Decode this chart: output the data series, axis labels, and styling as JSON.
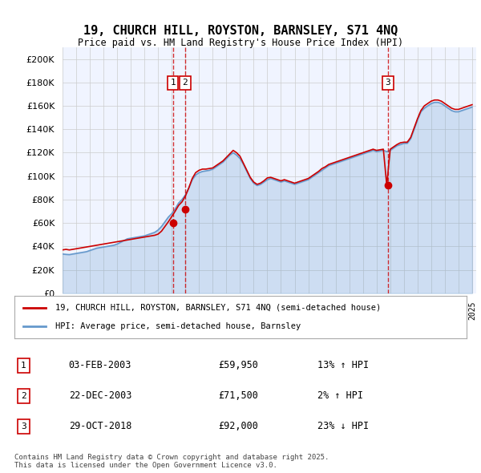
{
  "title": "19, CHURCH HILL, ROYSTON, BARNSLEY, S71 4NQ",
  "subtitle": "Price paid vs. HM Land Registry's House Price Index (HPI)",
  "ylabel_ticks": [
    "£0",
    "£20K",
    "£40K",
    "£60K",
    "£80K",
    "£100K",
    "£120K",
    "£140K",
    "£160K",
    "£180K",
    "£200K"
  ],
  "ytick_values": [
    0,
    20000,
    40000,
    60000,
    80000,
    100000,
    120000,
    140000,
    160000,
    180000,
    200000
  ],
  "ylim": [
    0,
    210000
  ],
  "background_color": "#f0f4ff",
  "plot_bg_color": "#f0f4ff",
  "legend_entry1": "19, CHURCH HILL, ROYSTON, BARNSLEY, S71 4NQ (semi-detached house)",
  "legend_entry2": "HPI: Average price, semi-detached house, Barnsley",
  "transactions": [
    {
      "label": "1",
      "date": "03-FEB-2003",
      "price": 59950,
      "pct": "13%",
      "dir": "↑"
    },
    {
      "label": "2",
      "date": "22-DEC-2003",
      "price": 71500,
      "pct": "2%",
      "dir": "↑"
    },
    {
      "label": "3",
      "date": "29-OCT-2018",
      "price": 92000,
      "pct": "23%",
      "dir": "↓"
    }
  ],
  "transaction_xvals": [
    2003.09,
    2003.98,
    2018.83
  ],
  "footer": "Contains HM Land Registry data © Crown copyright and database right 2025.\nThis data is licensed under the Open Government Licence v3.0.",
  "hpi_color": "#6699cc",
  "price_color": "#cc0000",
  "vline_color": "#cc0000",
  "grid_color": "#cccccc",
  "hpi_data": {
    "x": [
      1995.0,
      1995.25,
      1995.5,
      1995.75,
      1996.0,
      1996.25,
      1996.5,
      1996.75,
      1997.0,
      1997.25,
      1997.5,
      1997.75,
      1998.0,
      1998.25,
      1998.5,
      1998.75,
      1999.0,
      1999.25,
      1999.5,
      1999.75,
      2000.0,
      2000.25,
      2000.5,
      2000.75,
      2001.0,
      2001.25,
      2001.5,
      2001.75,
      2002.0,
      2002.25,
      2002.5,
      2002.75,
      2003.0,
      2003.25,
      2003.5,
      2003.75,
      2004.0,
      2004.25,
      2004.5,
      2004.75,
      2005.0,
      2005.25,
      2005.5,
      2005.75,
      2006.0,
      2006.25,
      2006.5,
      2006.75,
      2007.0,
      2007.25,
      2007.5,
      2007.75,
      2008.0,
      2008.25,
      2008.5,
      2008.75,
      2009.0,
      2009.25,
      2009.5,
      2009.75,
      2010.0,
      2010.25,
      2010.5,
      2010.75,
      2011.0,
      2011.25,
      2011.5,
      2011.75,
      2012.0,
      2012.25,
      2012.5,
      2012.75,
      2013.0,
      2013.25,
      2013.5,
      2013.75,
      2014.0,
      2014.25,
      2014.5,
      2014.75,
      2015.0,
      2015.25,
      2015.5,
      2015.75,
      2016.0,
      2016.25,
      2016.5,
      2016.75,
      2017.0,
      2017.25,
      2017.5,
      2017.75,
      2018.0,
      2018.25,
      2018.5,
      2018.75,
      2019.0,
      2019.25,
      2019.5,
      2019.75,
      2020.0,
      2020.25,
      2020.5,
      2020.75,
      2021.0,
      2021.25,
      2021.5,
      2021.75,
      2022.0,
      2022.25,
      2022.5,
      2022.75,
      2023.0,
      2023.25,
      2023.5,
      2023.75,
      2024.0,
      2024.25,
      2024.5,
      2024.75,
      2025.0
    ],
    "y": [
      33500,
      33200,
      33000,
      33500,
      34000,
      34500,
      35000,
      35500,
      36500,
      37500,
      38500,
      39000,
      39500,
      40000,
      40500,
      41000,
      42000,
      43500,
      45000,
      46500,
      47000,
      47500,
      48000,
      48500,
      49000,
      50000,
      51000,
      52000,
      54000,
      57000,
      61000,
      65000,
      68000,
      72000,
      77000,
      80000,
      84000,
      90000,
      97000,
      101000,
      103000,
      104000,
      104500,
      105000,
      106000,
      108000,
      110000,
      112000,
      115000,
      118000,
      120000,
      118000,
      115000,
      110000,
      104000,
      98000,
      94000,
      92000,
      93000,
      95000,
      97000,
      98000,
      97000,
      96000,
      95000,
      96000,
      95000,
      94000,
      93000,
      94000,
      95000,
      96000,
      97000,
      99000,
      101000,
      103000,
      105000,
      107000,
      109000,
      110000,
      111000,
      112000,
      113000,
      114000,
      115000,
      116000,
      117000,
      118000,
      119000,
      120000,
      121000,
      122000,
      121000,
      121500,
      122000,
      121000,
      122000,
      124000,
      126000,
      127000,
      128000,
      128000,
      132000,
      140000,
      148000,
      155000,
      158000,
      160000,
      162000,
      163000,
      163000,
      162000,
      160000,
      158000,
      156000,
      155000,
      155000,
      156000,
      157000,
      158000,
      159000
    ]
  },
  "price_data": {
    "x": [
      1995.0,
      1995.25,
      1995.5,
      1995.75,
      1996.0,
      1996.25,
      1996.5,
      1996.75,
      1997.0,
      1997.25,
      1997.5,
      1997.75,
      1998.0,
      1998.25,
      1998.5,
      1998.75,
      1999.0,
      1999.25,
      1999.5,
      1999.75,
      2000.0,
      2000.25,
      2000.5,
      2000.75,
      2001.0,
      2001.25,
      2001.5,
      2001.75,
      2002.0,
      2002.25,
      2002.5,
      2002.75,
      2003.0,
      2003.25,
      2003.5,
      2003.75,
      2004.0,
      2004.25,
      2004.5,
      2004.75,
      2005.0,
      2005.25,
      2005.5,
      2005.75,
      2006.0,
      2006.25,
      2006.5,
      2006.75,
      2007.0,
      2007.25,
      2007.5,
      2007.75,
      2008.0,
      2008.25,
      2008.5,
      2008.75,
      2009.0,
      2009.25,
      2009.5,
      2009.75,
      2010.0,
      2010.25,
      2010.5,
      2010.75,
      2011.0,
      2011.25,
      2011.5,
      2011.75,
      2012.0,
      2012.25,
      2012.5,
      2012.75,
      2013.0,
      2013.25,
      2013.5,
      2013.75,
      2014.0,
      2014.25,
      2014.5,
      2014.75,
      2015.0,
      2015.25,
      2015.5,
      2015.75,
      2016.0,
      2016.25,
      2016.5,
      2016.75,
      2017.0,
      2017.25,
      2017.5,
      2017.75,
      2018.0,
      2018.25,
      2018.5,
      2018.75,
      2019.0,
      2019.25,
      2019.5,
      2019.75,
      2020.0,
      2020.25,
      2020.5,
      2020.75,
      2021.0,
      2021.25,
      2021.5,
      2021.75,
      2022.0,
      2022.25,
      2022.5,
      2022.75,
      2023.0,
      2023.25,
      2023.5,
      2023.75,
      2024.0,
      2024.25,
      2024.5,
      2024.75,
      2025.0
    ],
    "y": [
      37000,
      37500,
      37000,
      37500,
      38000,
      38500,
      39000,
      39500,
      40000,
      40500,
      41000,
      41500,
      42000,
      42500,
      43000,
      43500,
      44000,
      44500,
      45000,
      45500,
      46000,
      46500,
      47000,
      47500,
      48000,
      48500,
      49000,
      49500,
      50500,
      53000,
      57000,
      61000,
      65500,
      70000,
      75000,
      78000,
      83000,
      90000,
      98000,
      103000,
      105000,
      106000,
      106000,
      106500,
      107000,
      109000,
      111000,
      113000,
      116000,
      119000,
      122000,
      120000,
      117000,
      111000,
      105000,
      99000,
      95000,
      93000,
      94000,
      96000,
      98500,
      99000,
      98000,
      97000,
      96000,
      97000,
      96000,
      95000,
      94000,
      95000,
      96000,
      97000,
      98000,
      100000,
      102000,
      104000,
      106500,
      108000,
      110000,
      111000,
      112000,
      113000,
      114000,
      115000,
      116000,
      117000,
      118000,
      119000,
      120000,
      121000,
      122000,
      123000,
      122000,
      122500,
      123000,
      92000,
      123000,
      125000,
      127000,
      128500,
      129000,
      129000,
      133000,
      141000,
      149000,
      156000,
      160000,
      162000,
      164000,
      165000,
      165000,
      164000,
      162000,
      160000,
      158000,
      157000,
      157000,
      158000,
      159000,
      160000,
      161000
    ]
  }
}
